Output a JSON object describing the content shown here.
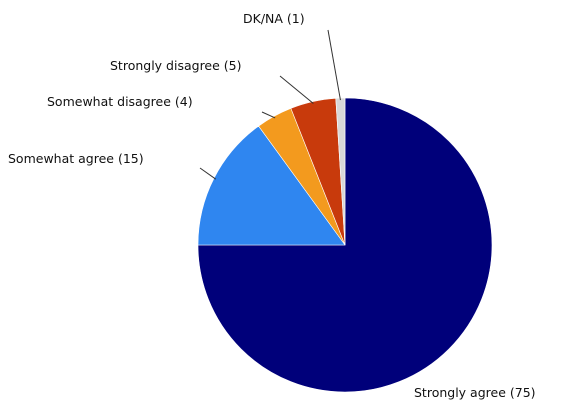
{
  "chart_data": {
    "type": "pie",
    "slices": [
      {
        "label": "Strongly agree (75)",
        "value": 75,
        "color": "#00007a"
      },
      {
        "label": "Somewhat agree (15)",
        "value": 15,
        "color": "#2f86f0"
      },
      {
        "label": "Somewhat disagree (4)",
        "value": 4,
        "color": "#f39a1e"
      },
      {
        "label": "Strongly disagree (5)",
        "value": 5,
        "color": "#c83a0c"
      },
      {
        "label": "DK/NA (1)",
        "value": 1,
        "color": "#d8d8d8"
      }
    ],
    "start_angle": "top, clockwise",
    "legend": "none",
    "labels": "outside with leader lines"
  }
}
